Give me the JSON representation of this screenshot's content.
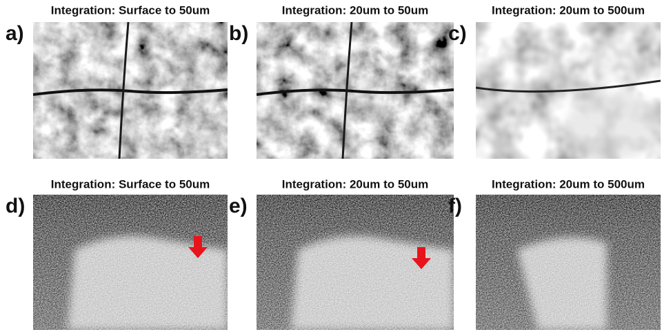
{
  "panels": [
    {
      "label": "a)",
      "title": "Integration: Surface to 50um"
    },
    {
      "label": "b)",
      "title": "Integration: 20um to 50um"
    },
    {
      "label": "c)",
      "title": "Integration: 20um to 500um"
    },
    {
      "label": "d)",
      "title": "Integration: Surface to 50um"
    },
    {
      "label": "e)",
      "title": "Integration: 20um to 50um"
    },
    {
      "label": "f)",
      "title": "Integration: 20um to 500um"
    }
  ]
}
